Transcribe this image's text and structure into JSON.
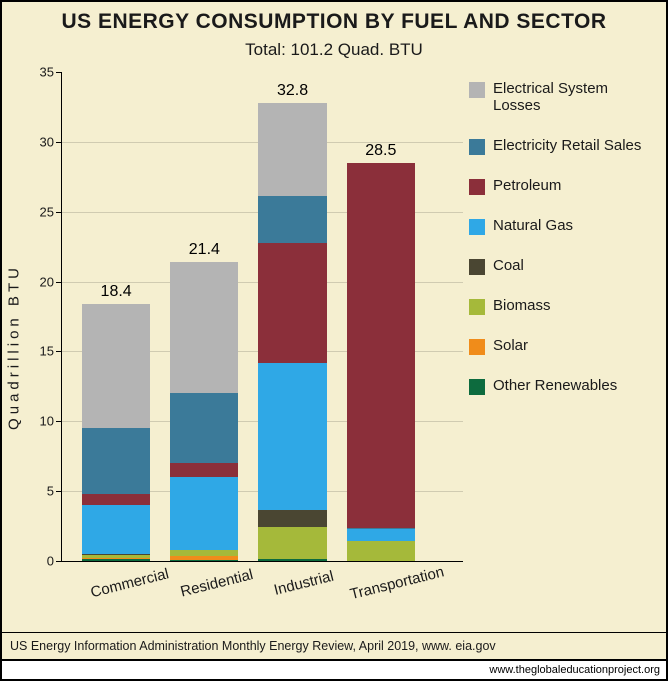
{
  "title": "US ENERGY CONSUMPTION BY FUEL AND SECTOR",
  "subtitle": "Total: 101.2 Quad. BTU",
  "ylabel": "Quadrillion BTU",
  "chart": {
    "type": "stacked-bar",
    "ymax": 35,
    "ytick_step": 5,
    "background_color": "#f5efd0",
    "axis_color": "#000000",
    "grid_color": "rgba(0,0,0,0.15)",
    "bar_width_pct": 17,
    "bar_gap_pct": 5,
    "bar_left_start_pct": 5,
    "label_fontsize": 15,
    "total_fontsize": 16,
    "tick_fontsize": 13,
    "xlabel_rotate_deg": -14
  },
  "fuels": [
    {
      "key": "electrical_losses",
      "label": "Electrical System Losses",
      "color": "#b4b4b4"
    },
    {
      "key": "electricity_retail",
      "label": "Electricity Retail Sales",
      "color": "#3b7a99"
    },
    {
      "key": "petroleum",
      "label": "Petroleum",
      "color": "#8b2f3a"
    },
    {
      "key": "natural_gas",
      "label": "Natural Gas",
      "color": "#2fa8e6"
    },
    {
      "key": "coal",
      "label": "Coal",
      "color": "#4a4632"
    },
    {
      "key": "biomass",
      "label": "Biomass",
      "color": "#a5b93a"
    },
    {
      "key": "solar",
      "label": "Solar",
      "color": "#f08c1a"
    },
    {
      "key": "other_renewables",
      "label": "Other Renewables",
      "color": "#0d6b3e"
    }
  ],
  "sectors": [
    {
      "name": "Commercial",
      "total_label": "18.4",
      "stack": [
        {
          "fuel": "other_renewables",
          "value": 0.15
        },
        {
          "fuel": "solar",
          "value": 0.1
        },
        {
          "fuel": "biomass",
          "value": 0.2
        },
        {
          "fuel": "coal",
          "value": 0.05
        },
        {
          "fuel": "natural_gas",
          "value": 3.5
        },
        {
          "fuel": "petroleum",
          "value": 0.8
        },
        {
          "fuel": "electricity_retail",
          "value": 4.7
        },
        {
          "fuel": "electrical_losses",
          "value": 8.9
        }
      ]
    },
    {
      "name": "Residential",
      "total_label": "21.4",
      "stack": [
        {
          "fuel": "other_renewables",
          "value": 0.1
        },
        {
          "fuel": "solar",
          "value": 0.25
        },
        {
          "fuel": "biomass",
          "value": 0.45
        },
        {
          "fuel": "natural_gas",
          "value": 5.2
        },
        {
          "fuel": "petroleum",
          "value": 1.0
        },
        {
          "fuel": "electricity_retail",
          "value": 5.0
        },
        {
          "fuel": "electrical_losses",
          "value": 9.4
        }
      ]
    },
    {
      "name": "Industrial",
      "total_label": "32.8",
      "stack": [
        {
          "fuel": "other_renewables",
          "value": 0.15
        },
        {
          "fuel": "biomass",
          "value": 2.3
        },
        {
          "fuel": "coal",
          "value": 1.2
        },
        {
          "fuel": "natural_gas",
          "value": 10.5
        },
        {
          "fuel": "petroleum",
          "value": 8.6
        },
        {
          "fuel": "electricity_retail",
          "value": 3.4
        },
        {
          "fuel": "electrical_losses",
          "value": 6.65
        }
      ]
    },
    {
      "name": "Transportation",
      "total_label": "28.5",
      "stack": [
        {
          "fuel": "biomass",
          "value": 1.4
        },
        {
          "fuel": "natural_gas",
          "value": 0.9
        },
        {
          "fuel": "electricity_retail",
          "value": 0.1
        },
        {
          "fuel": "petroleum",
          "value": 26.1
        }
      ]
    }
  ],
  "footer": "US Energy Information Administration Monthly Energy Review, April 2019, www. eia.gov",
  "attribution": "www.theglobaleducationproject.org"
}
